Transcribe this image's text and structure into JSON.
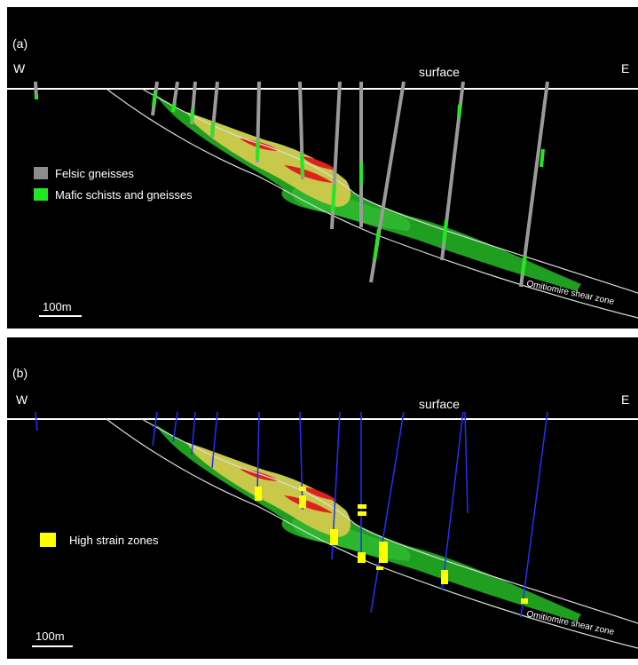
{
  "panels": [
    {
      "label": "(a)",
      "west": "W",
      "east": "E",
      "surface": "surface",
      "legend": [
        {
          "label": "Felsic gneisses",
          "color": "#8c8c8c"
        },
        {
          "label": "Mafic schists and gneisses",
          "color": "#22e822"
        }
      ],
      "scale": "100m",
      "shear_zone": "Omitiomire shear zone"
    },
    {
      "label": "(b)",
      "west": "W",
      "east": "E",
      "surface": "surface",
      "legend": [
        {
          "label": "High strain zones",
          "color": "#ffff00"
        }
      ],
      "scale": "100m",
      "shear_zone": "Omitiomire shear zone"
    }
  ]
}
